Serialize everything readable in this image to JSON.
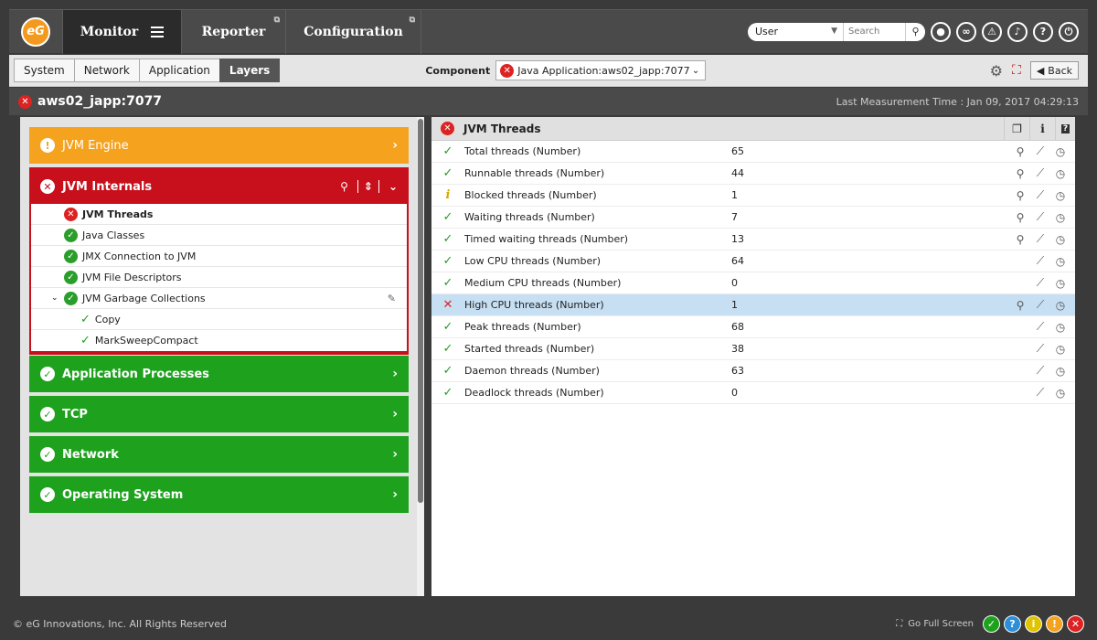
{
  "nav": {
    "logo": "eG",
    "tabs": [
      {
        "label": "Monitor"
      },
      {
        "label": "Reporter"
      },
      {
        "label": "Configuration"
      }
    ],
    "user_select": "User",
    "search_placeholder": "Search"
  },
  "subnav": {
    "tabs": [
      "System",
      "Network",
      "Application",
      "Layers"
    ],
    "component_label": "Component",
    "component_value": "Java Application:aws02_japp:7077",
    "back_label": "Back"
  },
  "titlebar": {
    "title": "aws02_japp:7077",
    "measurement": "Last Measurement Time : Jan 09, 2017 04:29:13"
  },
  "layers": {
    "jvm_engine": "JVM Engine",
    "jvm_internals": "JVM Internals",
    "tests": [
      {
        "label": "JVM Threads",
        "status": "critical"
      },
      {
        "label": "Java Classes",
        "status": "ok"
      },
      {
        "label": "JMX Connection to JVM",
        "status": "ok"
      },
      {
        "label": "JVM File Descriptors",
        "status": "ok"
      },
      {
        "label": "JVM Garbage Collections",
        "status": "ok"
      },
      {
        "label": "Copy",
        "status": "ok"
      },
      {
        "label": "MarkSweepCompact",
        "status": "ok"
      }
    ],
    "others": [
      "Application Processes",
      "TCP",
      "Network",
      "Operating System"
    ]
  },
  "measures": {
    "title": "JVM Threads",
    "rows": [
      {
        "name": "Total threads (Number)",
        "value": "65",
        "status": "ok"
      },
      {
        "name": "Runnable threads (Number)",
        "value": "44",
        "status": "ok"
      },
      {
        "name": "Blocked threads (Number)",
        "value": "1",
        "status": "warn"
      },
      {
        "name": "Waiting threads (Number)",
        "value": "7",
        "status": "ok"
      },
      {
        "name": "Timed waiting threads (Number)",
        "value": "13",
        "status": "ok"
      },
      {
        "name": "Low CPU threads (Number)",
        "value": "64",
        "status": "ok"
      },
      {
        "name": "Medium CPU threads (Number)",
        "value": "0",
        "status": "ok"
      },
      {
        "name": "High CPU threads (Number)",
        "value": "1",
        "status": "bad"
      },
      {
        "name": "Peak threads (Number)",
        "value": "68",
        "status": "ok"
      },
      {
        "name": "Started threads (Number)",
        "value": "38",
        "status": "ok"
      },
      {
        "name": "Daemon threads (Number)",
        "value": "63",
        "status": "ok"
      },
      {
        "name": "Deadlock threads (Number)",
        "value": "0",
        "status": "ok"
      }
    ]
  },
  "footer": {
    "copyright": "© eG Innovations, Inc. All Rights Reserved",
    "fullscreen": "Go Full Screen"
  },
  "colors": {
    "critical": "#c8101c",
    "ok": "#1ea21e",
    "warning": "#f5a21f"
  }
}
